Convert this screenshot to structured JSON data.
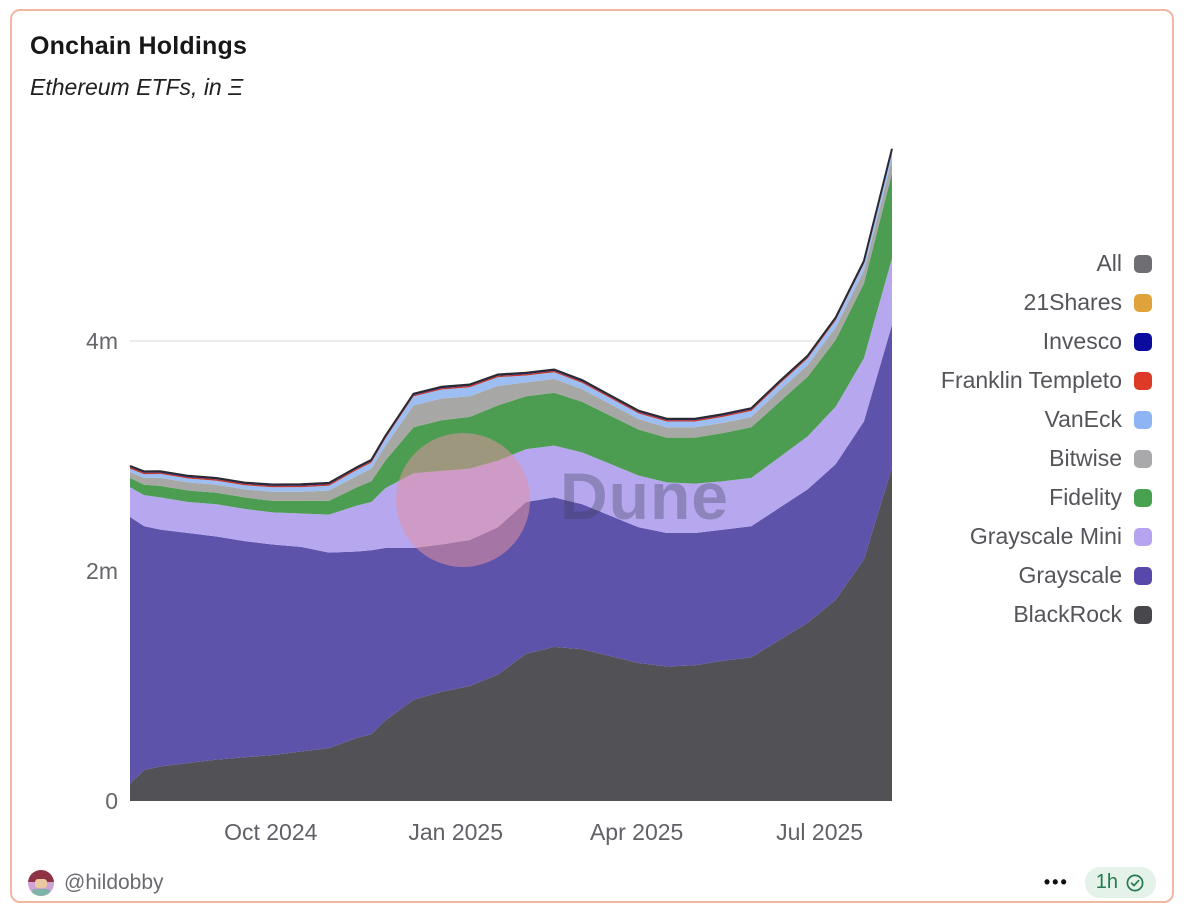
{
  "card": {
    "title": "Onchain Holdings",
    "subtitle": "Ethereum ETFs, in Ξ",
    "watermark": "Dune",
    "border_color": "#f0b7a1"
  },
  "footer": {
    "author_handle": "@hildobby",
    "more_label": "•••",
    "refresh_badge_label": "1h",
    "badge_color": "#257a4e",
    "badge_bg": "#e4f2e9"
  },
  "legend": [
    {
      "label": "All",
      "color": "#6f6f73"
    },
    {
      "label": "21Shares",
      "color": "#e0a33c"
    },
    {
      "label": "Invesco",
      "color": "#0b0b9e"
    },
    {
      "label": "Franklin Templeto",
      "color": "#dd3b27"
    },
    {
      "label": "VanEck",
      "color": "#8eb4f4"
    },
    {
      "label": "Bitwise",
      "color": "#a9a9ab"
    },
    {
      "label": "Fidelity",
      "color": "#48a14f"
    },
    {
      "label": "Grayscale Mini",
      "color": "#b7a4f0"
    },
    {
      "label": "Grayscale",
      "color": "#5848ab"
    },
    {
      "label": "BlackRock",
      "color": "#48484c"
    }
  ],
  "chart_data": {
    "type": "area",
    "stacked": true,
    "title": "Onchain Holdings",
    "subtitle": "Ethereum ETFs, in Ξ",
    "unit": "millions of ETH",
    "ylim": [
      0,
      5.72
    ],
    "grid_values": [
      2,
      4
    ],
    "yticks": [
      {
        "label": "0",
        "value": 0
      },
      {
        "label": "2m",
        "value": 2
      },
      {
        "label": "4m",
        "value": 4
      }
    ],
    "xticks": [
      {
        "label": "Oct 2024",
        "date": "2024-10-01"
      },
      {
        "label": "Jan 2025",
        "date": "2025-01-01"
      },
      {
        "label": "Apr 2025",
        "date": "2025-04-01"
      },
      {
        "label": "Jul 2025",
        "date": "2025-07-01"
      }
    ],
    "x": [
      "2024-07-23",
      "2024-07-30",
      "2024-08-07",
      "2024-08-21",
      "2024-09-04",
      "2024-09-18",
      "2024-10-02",
      "2024-10-16",
      "2024-10-30",
      "2024-11-13",
      "2024-11-20",
      "2024-11-27",
      "2024-12-11",
      "2024-12-25",
      "2025-01-08",
      "2025-01-22",
      "2025-02-05",
      "2025-02-19",
      "2025-03-05",
      "2025-03-19",
      "2025-04-02",
      "2025-04-16",
      "2025-04-30",
      "2025-05-14",
      "2025-05-28",
      "2025-06-11",
      "2025-06-25",
      "2025-07-09",
      "2025-07-23",
      "2025-08-06"
    ],
    "series": [
      {
        "name": "BlackRock",
        "color": "#525256",
        "values": [
          0.15,
          0.27,
          0.3,
          0.33,
          0.36,
          0.38,
          0.4,
          0.43,
          0.46,
          0.55,
          0.58,
          0.7,
          0.88,
          0.95,
          1.0,
          1.1,
          1.28,
          1.34,
          1.32,
          1.26,
          1.2,
          1.17,
          1.18,
          1.22,
          1.25,
          1.4,
          1.55,
          1.75,
          2.1,
          2.9
        ]
      },
      {
        "name": "Grayscale",
        "color": "#5d53aa",
        "values": [
          2.32,
          2.12,
          2.06,
          2.0,
          1.94,
          1.88,
          1.83,
          1.78,
          1.7,
          1.62,
          1.6,
          1.5,
          1.32,
          1.28,
          1.27,
          1.28,
          1.32,
          1.3,
          1.26,
          1.22,
          1.18,
          1.16,
          1.15,
          1.14,
          1.14,
          1.15,
          1.16,
          1.18,
          1.2,
          1.24
        ]
      },
      {
        "name": "Grayscale Mini",
        "color": "#b6a7ef",
        "values": [
          0.26,
          0.27,
          0.28,
          0.27,
          0.28,
          0.28,
          0.28,
          0.29,
          0.33,
          0.4,
          0.42,
          0.52,
          0.65,
          0.64,
          0.62,
          0.58,
          0.46,
          0.45,
          0.45,
          0.45,
          0.45,
          0.44,
          0.43,
          0.42,
          0.42,
          0.44,
          0.46,
          0.5,
          0.55,
          0.58
        ]
      },
      {
        "name": "Fidelity",
        "color": "#4c9d52",
        "values": [
          0.08,
          0.09,
          0.1,
          0.1,
          0.1,
          0.1,
          0.1,
          0.11,
          0.12,
          0.16,
          0.18,
          0.24,
          0.4,
          0.44,
          0.45,
          0.48,
          0.46,
          0.46,
          0.44,
          0.42,
          0.4,
          0.39,
          0.4,
          0.42,
          0.44,
          0.48,
          0.52,
          0.58,
          0.65,
          0.74
        ]
      },
      {
        "name": "Bitwise",
        "color": "#a7a7a5",
        "values": [
          0.05,
          0.06,
          0.07,
          0.07,
          0.07,
          0.07,
          0.08,
          0.08,
          0.09,
          0.1,
          0.11,
          0.13,
          0.19,
          0.19,
          0.18,
          0.17,
          0.12,
          0.12,
          0.11,
          0.1,
          0.09,
          0.09,
          0.09,
          0.09,
          0.09,
          0.1,
          0.1,
          0.11,
          0.11,
          0.12
        ]
      },
      {
        "name": "VanEck",
        "color": "#9dbef3",
        "values": [
          0.03,
          0.032,
          0.034,
          0.034,
          0.035,
          0.035,
          0.038,
          0.04,
          0.042,
          0.05,
          0.052,
          0.06,
          0.078,
          0.078,
          0.078,
          0.075,
          0.06,
          0.058,
          0.055,
          0.052,
          0.05,
          0.05,
          0.05,
          0.05,
          0.052,
          0.055,
          0.058,
          0.06,
          0.062,
          0.068
        ]
      },
      {
        "name": "Franklin Templeton",
        "color": "#c23a2d",
        "values": [
          0.012,
          0.012,
          0.012,
          0.012,
          0.012,
          0.012,
          0.012,
          0.012,
          0.012,
          0.012,
          0.012,
          0.012,
          0.012,
          0.012,
          0.012,
          0.012,
          0.012,
          0.012,
          0.012,
          0.012,
          0.012,
          0.012,
          0.012,
          0.012,
          0.012,
          0.012,
          0.012,
          0.012,
          0.012,
          0.012
        ]
      },
      {
        "name": "Invesco",
        "color": "#1a1a8c",
        "values": [
          0.008,
          0.008,
          0.008,
          0.008,
          0.008,
          0.008,
          0.008,
          0.008,
          0.008,
          0.008,
          0.008,
          0.008,
          0.008,
          0.008,
          0.008,
          0.008,
          0.008,
          0.008,
          0.008,
          0.008,
          0.008,
          0.008,
          0.008,
          0.008,
          0.008,
          0.008,
          0.008,
          0.008,
          0.008,
          0.008
        ]
      },
      {
        "name": "21Shares",
        "color": "#d8a040",
        "values": [
          0.004,
          0.004,
          0.004,
          0.004,
          0.004,
          0.004,
          0.004,
          0.004,
          0.004,
          0.004,
          0.004,
          0.004,
          0.004,
          0.004,
          0.004,
          0.004,
          0.004,
          0.004,
          0.004,
          0.004,
          0.004,
          0.004,
          0.004,
          0.004,
          0.004,
          0.004,
          0.004,
          0.004,
          0.004,
          0.004
        ]
      }
    ],
    "overlay_line": {
      "name": "All",
      "color": "#2a2a33"
    },
    "legend_position": "right"
  }
}
